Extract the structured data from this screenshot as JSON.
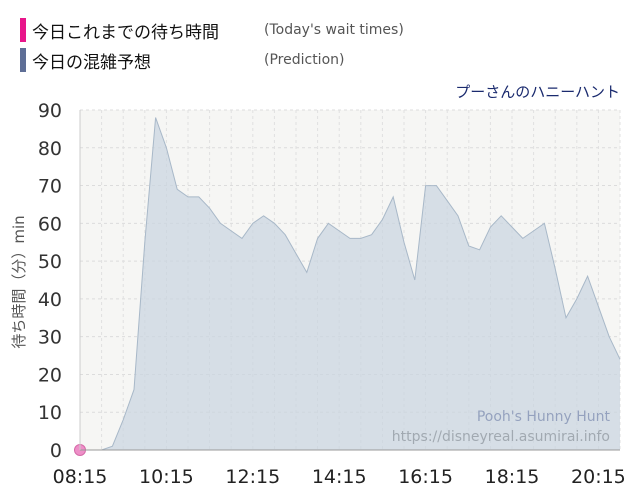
{
  "legend": {
    "actual_label": "今日これまでの待ち時間",
    "actual_note": "(Today's wait times)",
    "prediction_label": "今日の混雑予想",
    "prediction_note": "(Prediction)",
    "actual_color": "#e8168a",
    "prediction_color": "#5e6e96"
  },
  "attraction_jp": "プーさんのハニーハント",
  "watermark": {
    "name": "Pooh's Hunny Hunt",
    "url": "https://disneyreal.asumirai.info"
  },
  "chart_data": {
    "type": "area",
    "ylabel": "待ち時間（分）min",
    "ylim": [
      0,
      90
    ],
    "yticks": [
      0,
      10,
      20,
      30,
      40,
      50,
      60,
      70,
      80,
      90
    ],
    "xticks": [
      "08:15",
      "10:15",
      "12:15",
      "14:15",
      "16:15",
      "18:15",
      "20:15"
    ],
    "xlim": [
      "08:15",
      "20:45"
    ],
    "grid": true,
    "series": [
      {
        "name": "今日の混雑予想",
        "color": "#5e6e96",
        "x": [
          "08:15",
          "08:30",
          "08:45",
          "09:00",
          "09:15",
          "09:30",
          "09:45",
          "10:00",
          "10:15",
          "10:30",
          "10:45",
          "11:00",
          "11:15",
          "11:30",
          "11:45",
          "12:00",
          "12:15",
          "12:30",
          "12:45",
          "13:00",
          "13:15",
          "13:30",
          "13:45",
          "14:00",
          "14:15",
          "14:30",
          "14:45",
          "15:00",
          "15:15",
          "15:30",
          "15:45",
          "16:00",
          "16:15",
          "16:30",
          "16:45",
          "17:00",
          "17:15",
          "17:30",
          "17:45",
          "18:00",
          "18:15",
          "18:30",
          "18:45",
          "19:00",
          "19:15",
          "19:30",
          "19:45",
          "20:00",
          "20:15",
          "20:30",
          "20:45"
        ],
        "y": [
          0,
          0,
          0,
          1,
          8,
          16,
          55,
          88,
          80,
          69,
          67,
          67,
          64,
          60,
          58,
          56,
          60,
          62,
          60,
          57,
          52,
          47,
          56,
          60,
          58,
          56,
          56,
          57,
          61,
          67,
          55,
          45,
          70,
          70,
          66,
          62,
          54,
          53,
          59,
          62,
          59,
          56,
          58,
          60,
          48,
          35,
          40,
          46,
          38,
          30,
          24
        ]
      },
      {
        "name": "今日これまでの待ち時間",
        "color": "#e8168a",
        "x": [
          "08:15"
        ],
        "y": [
          0
        ]
      }
    ]
  }
}
